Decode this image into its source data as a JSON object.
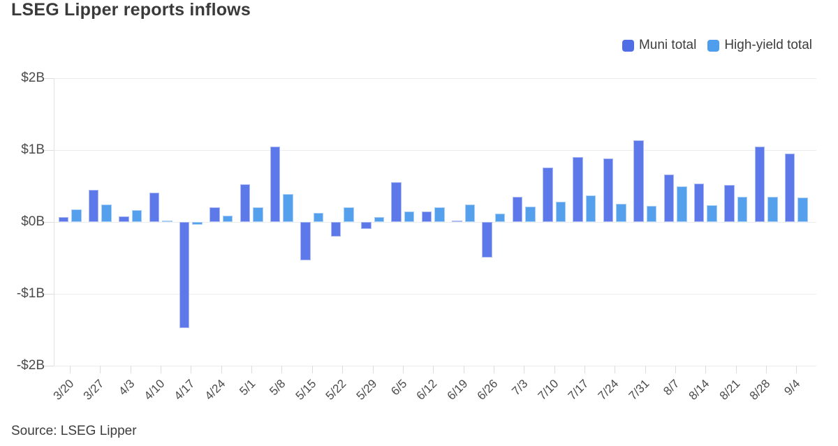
{
  "header": {
    "title": "LSEG Lipper reports inflows"
  },
  "legend": {
    "items": [
      {
        "label": "Muni total",
        "color": "#4f6ee6"
      },
      {
        "label": "High-yield total",
        "color": "#4f9eed"
      }
    ]
  },
  "chart_data": {
    "type": "bar",
    "title": "LSEG Lipper reports inflows",
    "xlabel": "",
    "ylabel": "",
    "unit": "$B",
    "ylim": [
      -2,
      2
    ],
    "grid": true,
    "legend_position": "top-right",
    "categories": [
      "3/20",
      "3/27",
      "4/3",
      "4/10",
      "4/17",
      "4/24",
      "5/1",
      "5/8",
      "5/15",
      "5/22",
      "5/29",
      "6/5",
      "6/12",
      "6/19",
      "6/26",
      "7/3",
      "7/10",
      "7/17",
      "7/24",
      "7/31",
      "8/7",
      "8/14",
      "8/21",
      "8/28",
      "9/4"
    ],
    "series": [
      {
        "name": "Muni total",
        "color": "#5c78e9",
        "values": [
          0.07,
          0.45,
          0.08,
          0.41,
          -1.47,
          0.2,
          0.52,
          1.05,
          -0.53,
          -0.2,
          -0.1,
          0.55,
          0.15,
          0.02,
          -0.49,
          0.35,
          0.76,
          0.9,
          0.88,
          1.13,
          0.66,
          0.53,
          0.51,
          1.05,
          0.95
        ]
      },
      {
        "name": "High-yield total",
        "color": "#55a0ed",
        "values": [
          0.17,
          0.24,
          0.16,
          0.02,
          -0.04,
          0.09,
          0.2,
          0.39,
          0.13,
          0.2,
          0.07,
          0.15,
          0.2,
          0.24,
          0.12,
          0.21,
          0.28,
          0.37,
          0.25,
          0.22,
          0.49,
          0.23,
          0.35,
          0.35,
          0.34
        ]
      }
    ],
    "yticks": [
      {
        "value": 2,
        "label": "$2B"
      },
      {
        "value": 1,
        "label": "$1B"
      },
      {
        "value": 0,
        "label": "$0B"
      },
      {
        "value": -1,
        "label": "-$1B"
      },
      {
        "value": -2,
        "label": "-$2B"
      }
    ]
  },
  "footer": {
    "source": "Source: LSEG Lipper"
  }
}
